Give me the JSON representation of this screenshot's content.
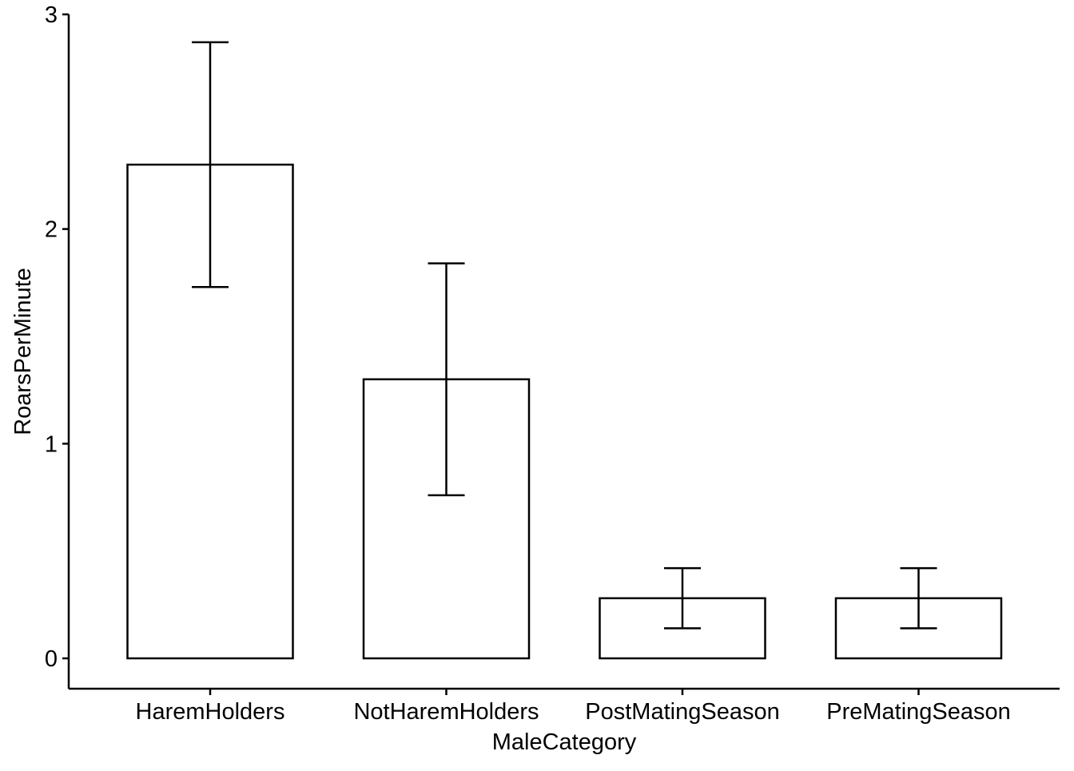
{
  "chart_data": {
    "type": "bar",
    "title": "",
    "xlabel": "MaleCategory",
    "ylabel": "RoarsPerMinute",
    "categories": [
      "HaremHolders",
      "NotHaremHolders",
      "PostMatingSeason",
      "PreMatingSeason"
    ],
    "values": [
      2.3,
      1.3,
      0.28,
      0.28
    ],
    "error_lower": [
      1.73,
      0.76,
      0.14,
      0.14
    ],
    "error_upper": [
      2.87,
      1.84,
      0.42,
      0.42
    ],
    "ylim": [
      0,
      3
    ],
    "yticks": [
      0,
      1,
      2,
      3
    ],
    "ytick_labels": [
      "0",
      "1",
      "2",
      "3"
    ],
    "grid": false,
    "legend": "none",
    "colors": {
      "bar_fill": "#ffffff",
      "bar_stroke": "#000000",
      "axis": "#000000",
      "text": "#000000"
    }
  }
}
